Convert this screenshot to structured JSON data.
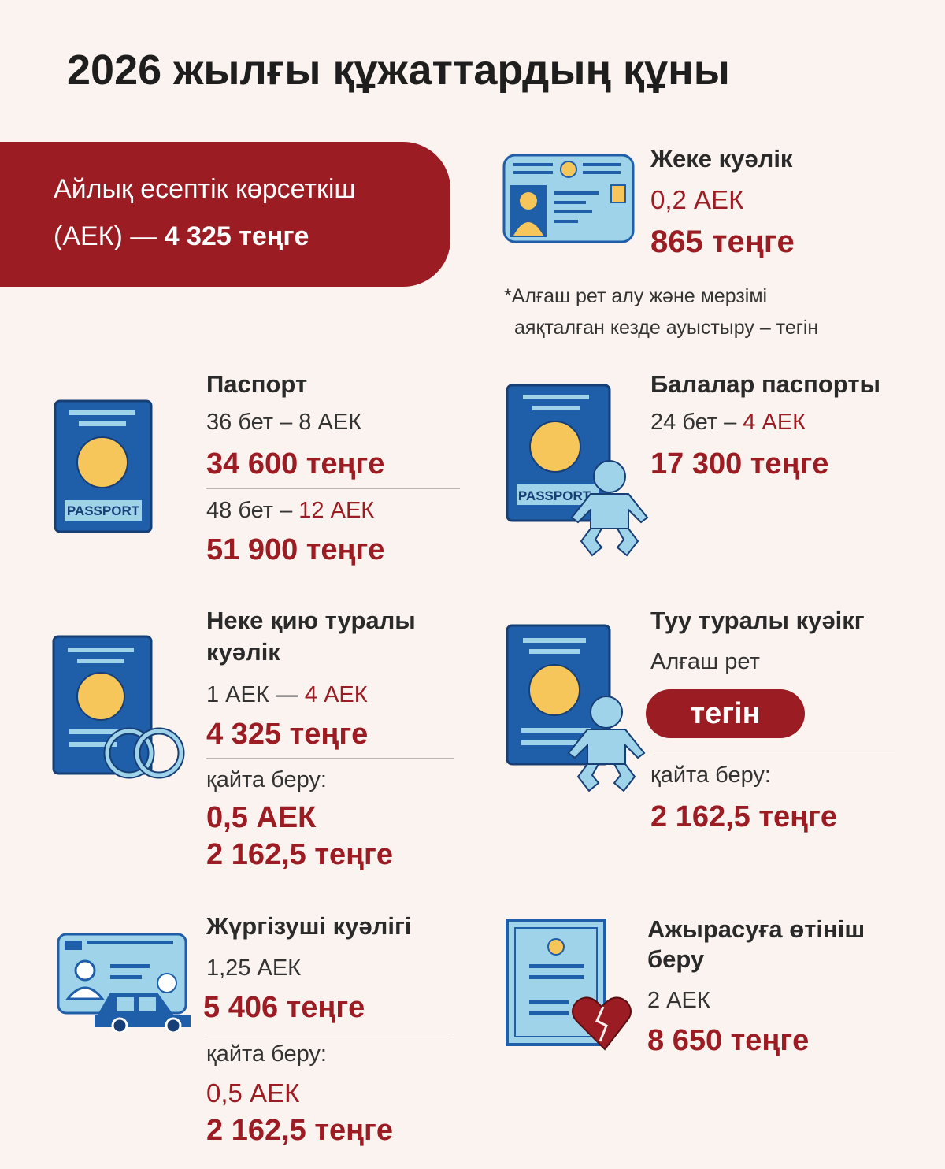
{
  "title": "2026 жылғы құжаттардың құны",
  "banner": {
    "line1": "Айлық есептік көрсеткіш",
    "line2_prefix": "(АЕК) — ",
    "line2_value": "4 325 теңге"
  },
  "colors": {
    "accent": "#9b1c22",
    "background": "#fbf3ef",
    "icon_blue": "#1f5ea8",
    "icon_light": "#9fd3ea",
    "icon_yellow": "#f6c65b"
  },
  "id_card": {
    "icon": "id-card-icon",
    "title": "Жеке куәлік",
    "aek": "0,2 АЕК",
    "price": "865 теңге",
    "note_line1": "*Алғаш рет алу және мерзімі",
    "note_line2": "аяқталған кезде ауыстыру – тегін"
  },
  "passport": {
    "icon": "passport-icon",
    "title": "Паспорт",
    "icon_label": "PASSPORT",
    "opt1": "36 бет – 8 АЕК",
    "price1": "34 600 теңге",
    "opt2_prefix": "48 бет – ",
    "opt2_aek": "12 АЕК",
    "price2": "51 900 теңге"
  },
  "child_passport": {
    "icon": "child-passport-icon",
    "title": "Балалар паспорты",
    "icon_label": "PASSPORT",
    "opt_prefix": "24 бет – ",
    "opt_aek": "4 АЕК",
    "price": "17 300 теңге"
  },
  "marriage": {
    "icon": "marriage-certificate-icon",
    "title_line1": "Неке қию туралы",
    "title_line2": "куәлік",
    "range_prefix": "1 АЕК — ",
    "range_aek": "4 АЕК",
    "price": "4 325 теңге",
    "reissue_label": "қайта беру:",
    "reissue_aek": "0,5 АЕК",
    "reissue_price": "2 162,5 теңге"
  },
  "birth": {
    "icon": "birth-certificate-icon",
    "title": "Туу туралы куәікг",
    "first_label": "Алғаш рет",
    "free_badge": "тегін",
    "reissue_label": "қайта беру:",
    "reissue_price": "2 162,5 теңге"
  },
  "driver": {
    "icon": "driver-license-icon",
    "title": "Жүргізуші куәлігі",
    "aek": "1,25 АЕК",
    "price": "5 406 теңге",
    "reissue_label": "қайта беру:",
    "reissue_aek": "0,5 АЕК",
    "reissue_price": "2 162,5 теңге"
  },
  "divorce": {
    "icon": "divorce-document-icon",
    "title_line1": "Ажырасуға өтініш",
    "title_line2": "беру",
    "aek": "2 АЕК",
    "price": "8 650 теңге"
  }
}
